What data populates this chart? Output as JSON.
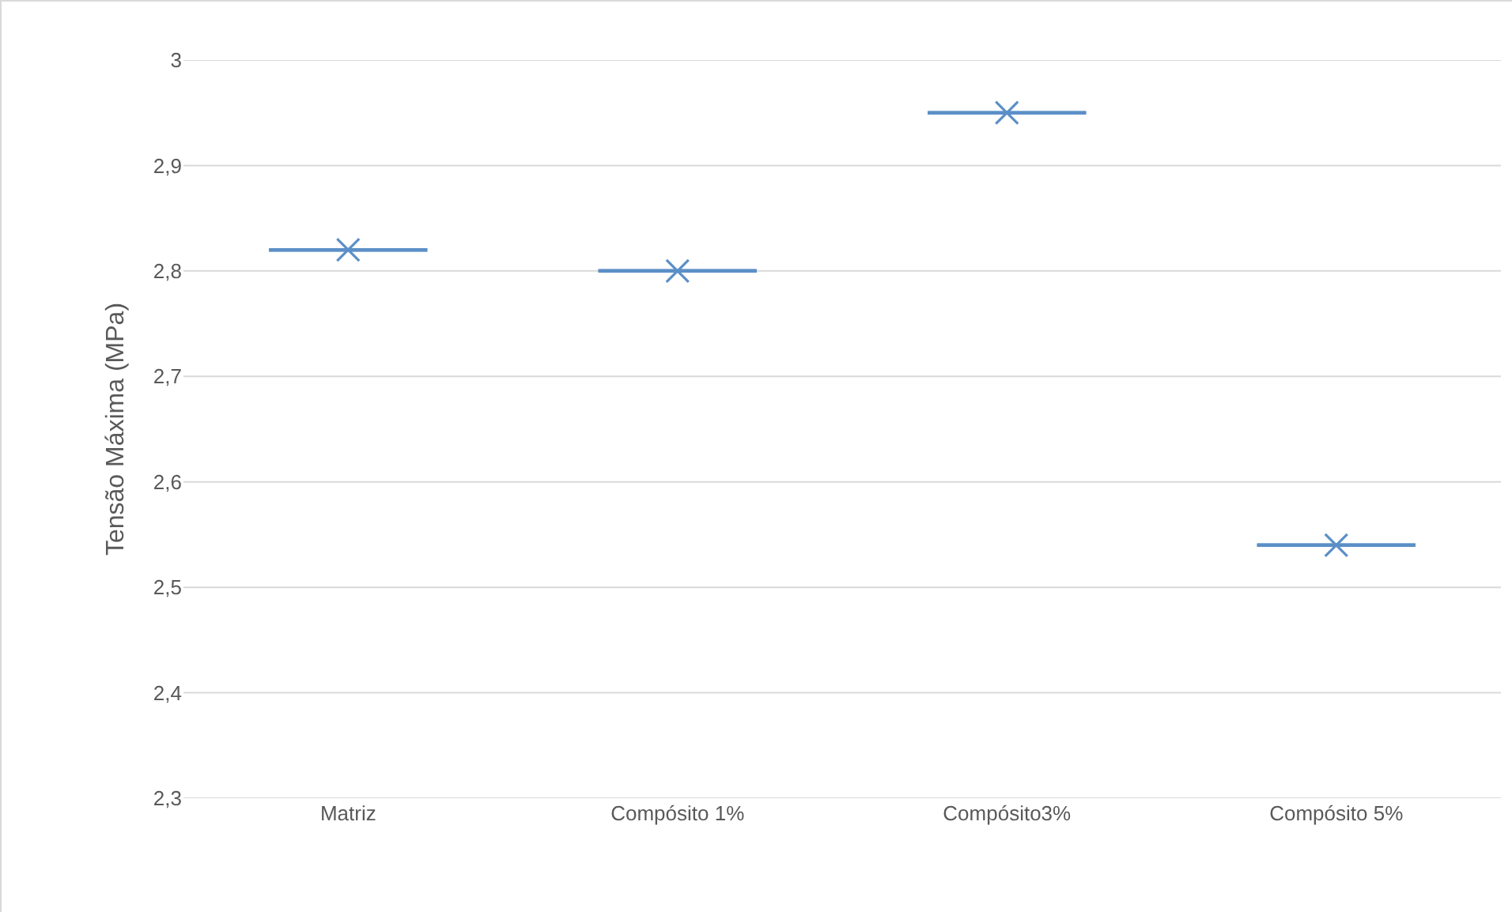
{
  "chart_data": {
    "type": "box",
    "ylabel": "Tensão Máxima (MPa)",
    "categories": [
      "Matriz",
      "Compósito 1%",
      "Compósito3%",
      "Compósito 5%"
    ],
    "series": [
      {
        "color": "#5b8fc7",
        "boxes": [
          {
            "low": 2.82,
            "q1": 2.82,
            "median": 2.82,
            "q3": 2.82,
            "high": 2.82,
            "mean": 2.82
          },
          {
            "low": 2.8,
            "q1": 2.8,
            "median": 2.8,
            "q3": 2.8,
            "high": 2.8,
            "mean": 2.8
          },
          {
            "low": 2.95,
            "q1": 2.95,
            "median": 2.95,
            "q3": 2.95,
            "high": 2.95,
            "mean": 2.95
          },
          {
            "low": 2.54,
            "q1": 2.54,
            "median": 2.54,
            "q3": 2.54,
            "high": 2.54,
            "mean": 2.54
          }
        ]
      }
    ],
    "ylim": [
      2.3,
      3
    ],
    "yticks": [
      {
        "value": 2.3,
        "label": "2,3"
      },
      {
        "value": 2.4,
        "label": "2,4"
      },
      {
        "value": 2.5,
        "label": "2,5"
      },
      {
        "value": 2.6,
        "label": "2,6"
      },
      {
        "value": 2.7,
        "label": "2,7"
      },
      {
        "value": 2.8,
        "label": "2,8"
      },
      {
        "value": 2.9,
        "label": "2,9"
      },
      {
        "value": 3,
        "label": "3"
      }
    ],
    "grid": "y",
    "marker": "cross"
  }
}
